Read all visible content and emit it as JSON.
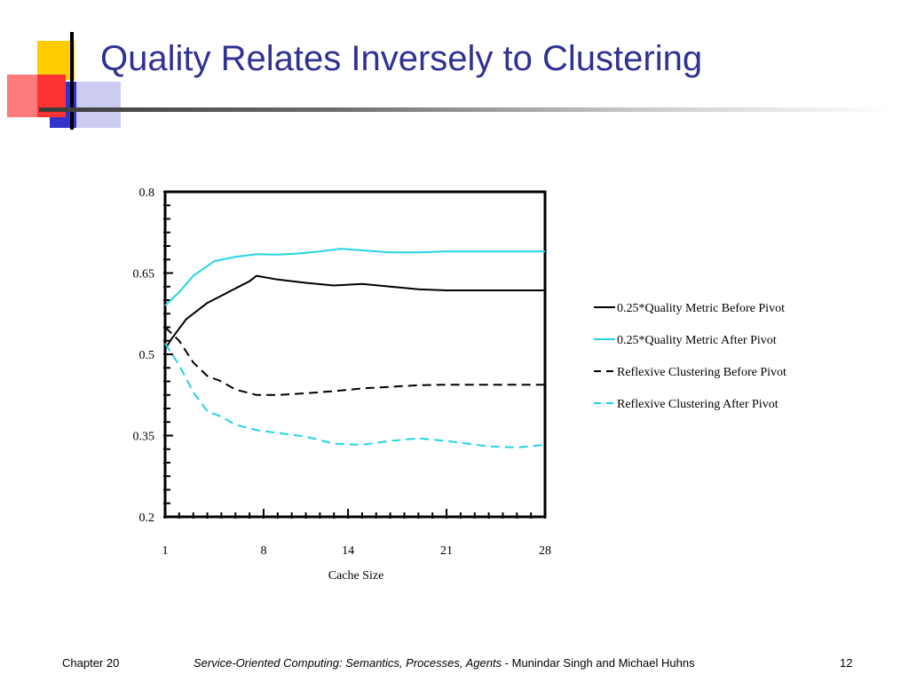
{
  "slide": {
    "title": "Quality Relates Inversely to Clustering",
    "footer": {
      "chapter": "Chapter 20",
      "book": "Service-Oriented Computing: Semantics, Processes, Agents",
      "authors": " - Munindar Singh and Michael Huhns",
      "page": "12"
    }
  },
  "colors": {
    "title": "#2f3292",
    "logo_yellow": "#ffcc00",
    "logo_red": "#ff3333",
    "logo_blue": "#3333cc",
    "series_black": "#000000",
    "series_cyan": "#22d3e6"
  },
  "chart_data": {
    "type": "line",
    "title": "",
    "xlabel": "Cache Size",
    "ylabel": "",
    "xlim": [
      1,
      28
    ],
    "ylim": [
      0.2,
      0.8
    ],
    "x_ticks": [
      "1",
      "8",
      "14",
      "21",
      "28"
    ],
    "y_ticks": [
      "0.8",
      "0.65",
      "0.5",
      "0.35",
      "0.2"
    ],
    "x_tick_values": [
      1,
      8,
      14,
      21,
      28
    ],
    "y_tick_values": [
      0.8,
      0.65,
      0.5,
      0.35,
      0.2
    ],
    "grid": false,
    "legend_position": "right",
    "series": [
      {
        "name": "0.25*Quality Metric Before Pivot",
        "style": "solid",
        "color": "#000000",
        "x": [
          1,
          1.5,
          2.5,
          4,
          5.5,
          7,
          7.5,
          9,
          11,
          13,
          15,
          17,
          19,
          21,
          24,
          28
        ],
        "y": [
          0.51,
          0.53,
          0.565,
          0.595,
          0.615,
          0.635,
          0.645,
          0.638,
          0.632,
          0.627,
          0.63,
          0.625,
          0.62,
          0.618,
          0.618,
          0.618
        ]
      },
      {
        "name": "0.25*Quality Metric After Pivot",
        "style": "solid",
        "color": "#22d3e6",
        "x": [
          1,
          2,
          3,
          4.5,
          6,
          7.5,
          9,
          10.5,
          12,
          13.5,
          15,
          17,
          19,
          21,
          24,
          28
        ],
        "y": [
          0.59,
          0.615,
          0.645,
          0.672,
          0.68,
          0.685,
          0.684,
          0.686,
          0.69,
          0.695,
          0.692,
          0.688,
          0.688,
          0.69,
          0.69,
          0.69
        ]
      },
      {
        "name": "Reflexive Clustering Before Pivot",
        "style": "dashed",
        "color": "#000000",
        "x": [
          1,
          2,
          3,
          4,
          5,
          6,
          7.5,
          9,
          11,
          13,
          15,
          17,
          19,
          21,
          24,
          28
        ],
        "y": [
          0.55,
          0.525,
          0.485,
          0.46,
          0.45,
          0.435,
          0.425,
          0.425,
          0.428,
          0.432,
          0.437,
          0.44,
          0.443,
          0.444,
          0.444,
          0.444
        ]
      },
      {
        "name": "Reflexive Clustering After Pivot",
        "style": "dashed",
        "color": "#22d3e6",
        "x": [
          1,
          2,
          3,
          4,
          5,
          6,
          7.5,
          9,
          11,
          13,
          15,
          17,
          19,
          21,
          24,
          26,
          28
        ],
        "y": [
          0.52,
          0.48,
          0.43,
          0.395,
          0.385,
          0.37,
          0.36,
          0.355,
          0.348,
          0.335,
          0.333,
          0.34,
          0.345,
          0.34,
          0.33,
          0.328,
          0.333
        ]
      }
    ]
  }
}
